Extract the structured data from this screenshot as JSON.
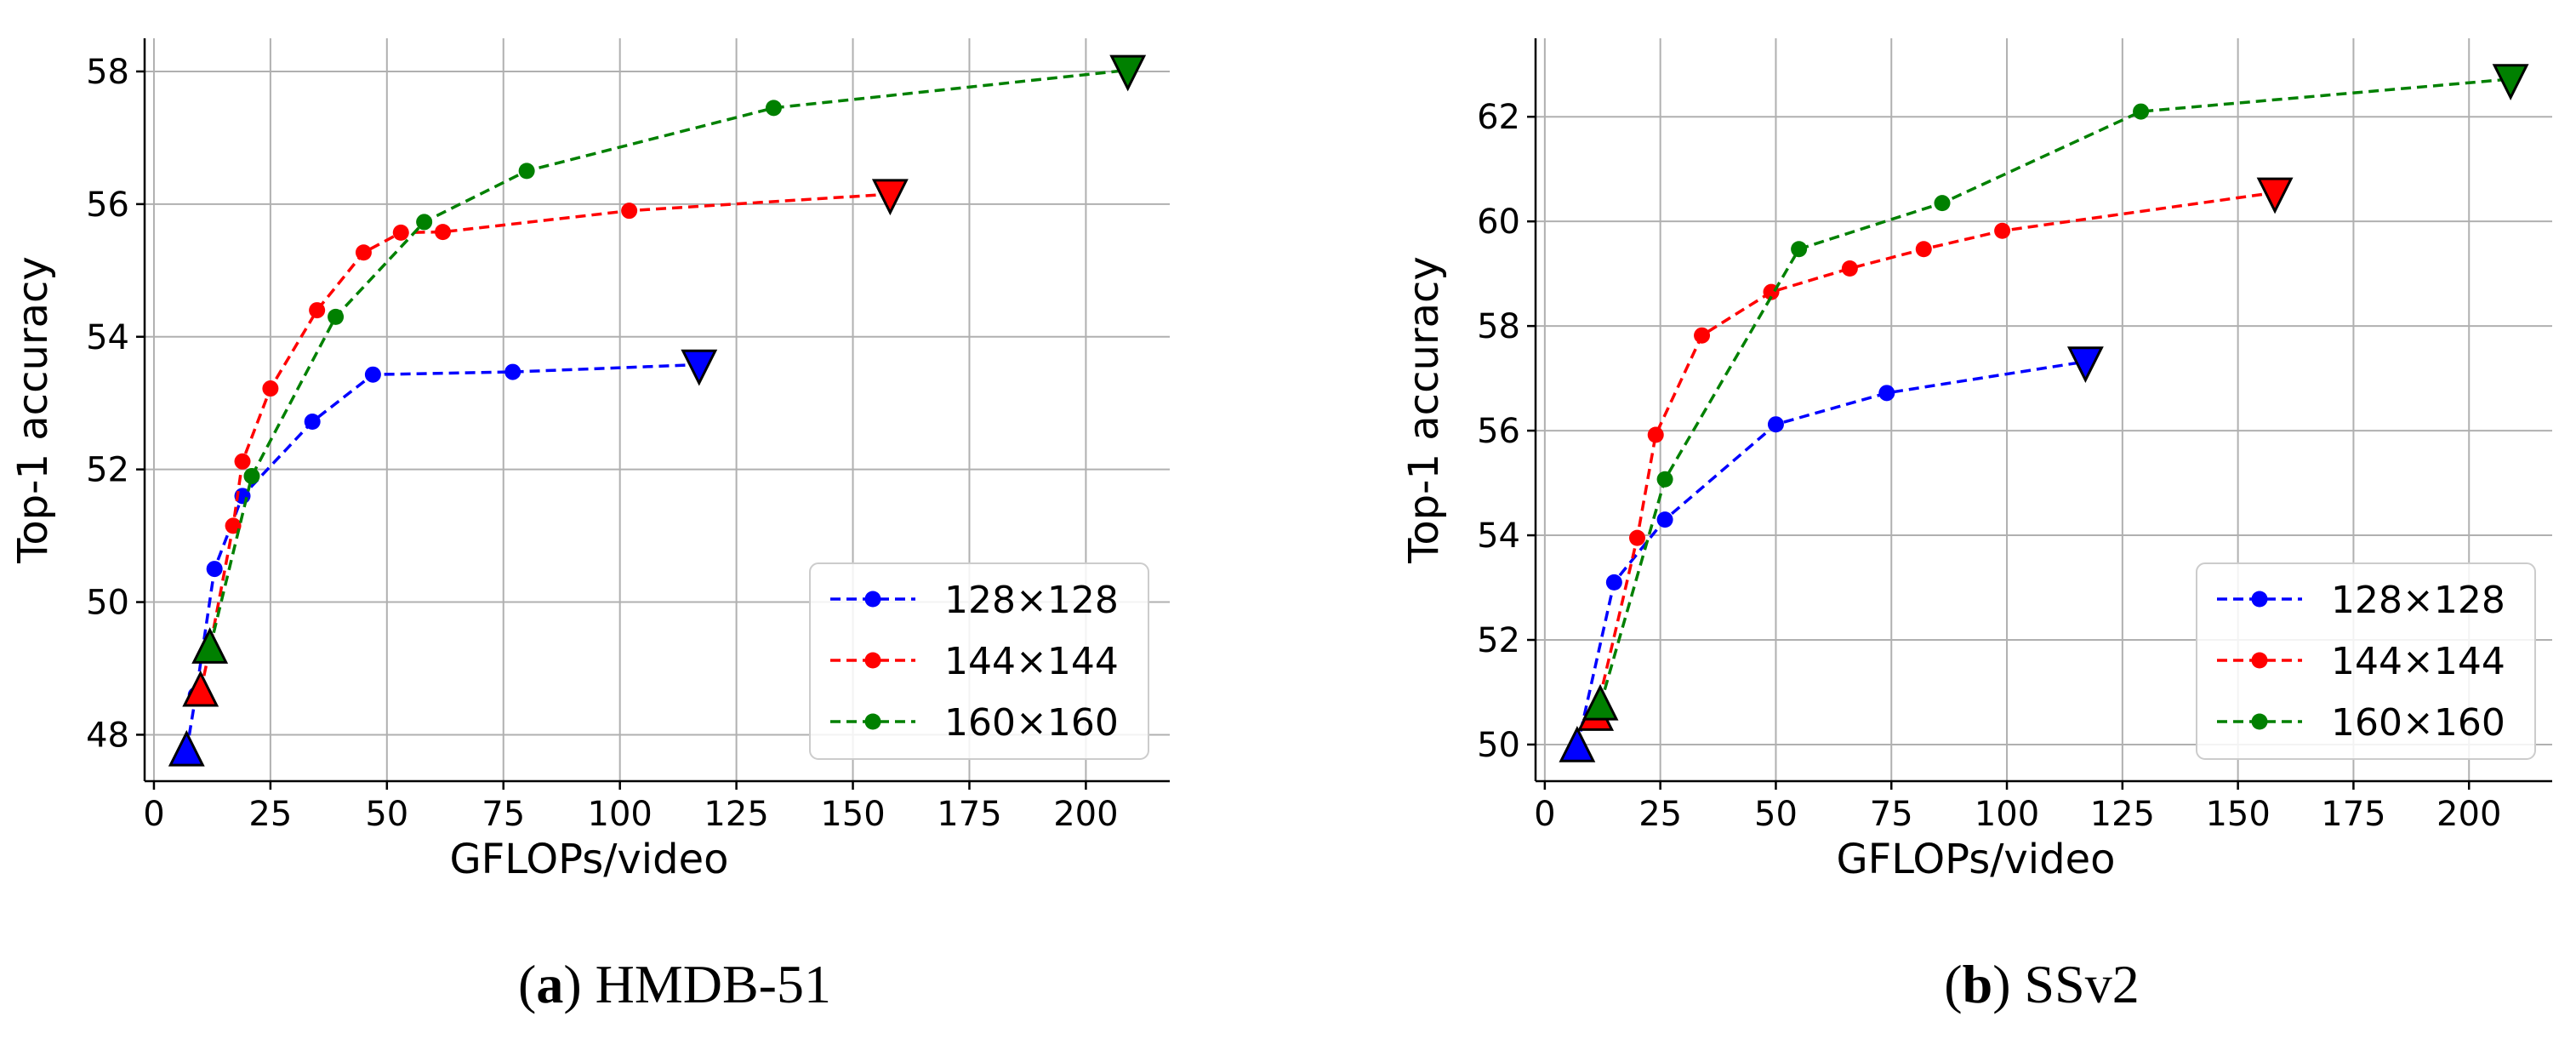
{
  "chart_data": [
    {
      "type": "line",
      "caption_tag": "a",
      "caption_text": " HMDB-51",
      "xlabel": "GFLOPs/video",
      "ylabel": "Top-1 accuracy",
      "xlim": [
        -2,
        218
      ],
      "ylim": [
        47.3,
        58.5
      ],
      "xticks": [
        0,
        25,
        50,
        75,
        100,
        125,
        150,
        175,
        200
      ],
      "yticks": [
        48,
        50,
        52,
        54,
        56,
        58
      ],
      "grid": true,
      "legend_position": "lower-right",
      "series": [
        {
          "name": "128×128",
          "color": "#0000ff",
          "x": [
            7,
            9,
            13,
            19,
            34,
            47,
            77,
            117
          ],
          "y": [
            47.75,
            48.6,
            50.5,
            51.6,
            52.72,
            53.43,
            53.47,
            53.58
          ],
          "first_marker": "triangle-up",
          "last_marker": "triangle-down"
        },
        {
          "name": "144×144",
          "color": "#ff0000",
          "x": [
            10,
            12,
            17,
            19,
            25,
            35,
            45,
            53,
            62,
            102,
            158
          ],
          "y": [
            48.65,
            49.3,
            51.15,
            52.12,
            53.22,
            54.4,
            55.27,
            55.57,
            55.58,
            55.9,
            56.15
          ],
          "first_marker": "triangle-up",
          "last_marker": "triangle-down"
        },
        {
          "name": "160×160",
          "color": "#008000",
          "x": [
            12,
            21,
            39,
            58,
            80,
            133,
            209
          ],
          "y": [
            49.3,
            51.9,
            54.3,
            55.73,
            56.5,
            57.45,
            58.02
          ],
          "first_marker": "triangle-up",
          "last_marker": "triangle-down"
        }
      ]
    },
    {
      "type": "line",
      "caption_tag": "b",
      "caption_text": " SSv2",
      "xlabel": "GFLOPs/video",
      "ylabel": "Top-1 accuracy",
      "xlim": [
        -2,
        218
      ],
      "ylim": [
        49.3,
        63.5
      ],
      "xticks": [
        0,
        25,
        50,
        75,
        100,
        125,
        150,
        175,
        200
      ],
      "yticks": [
        50,
        52,
        54,
        56,
        58,
        60,
        62
      ],
      "grid": true,
      "legend_position": "lower-right",
      "series": [
        {
          "name": "128×128",
          "color": "#0000ff",
          "x": [
            7,
            15,
            26,
            50,
            74,
            117
          ],
          "y": [
            49.95,
            53.1,
            54.3,
            56.12,
            56.72,
            57.32
          ],
          "first_marker": "triangle-up",
          "last_marker": "triangle-down"
        },
        {
          "name": "144×144",
          "color": "#ff0000",
          "x": [
            11,
            20,
            24,
            34,
            49,
            66,
            82,
            99,
            158
          ],
          "y": [
            50.55,
            53.95,
            55.92,
            57.82,
            58.65,
            59.1,
            59.47,
            59.82,
            60.55
          ],
          "first_marker": "triangle-up",
          "last_marker": "triangle-down"
        },
        {
          "name": "160×160",
          "color": "#008000",
          "x": [
            12,
            26,
            55,
            86,
            129,
            209
          ],
          "y": [
            50.75,
            55.07,
            59.47,
            60.35,
            62.1,
            62.72
          ],
          "first_marker": "triangle-up",
          "last_marker": "triangle-down"
        }
      ]
    }
  ]
}
